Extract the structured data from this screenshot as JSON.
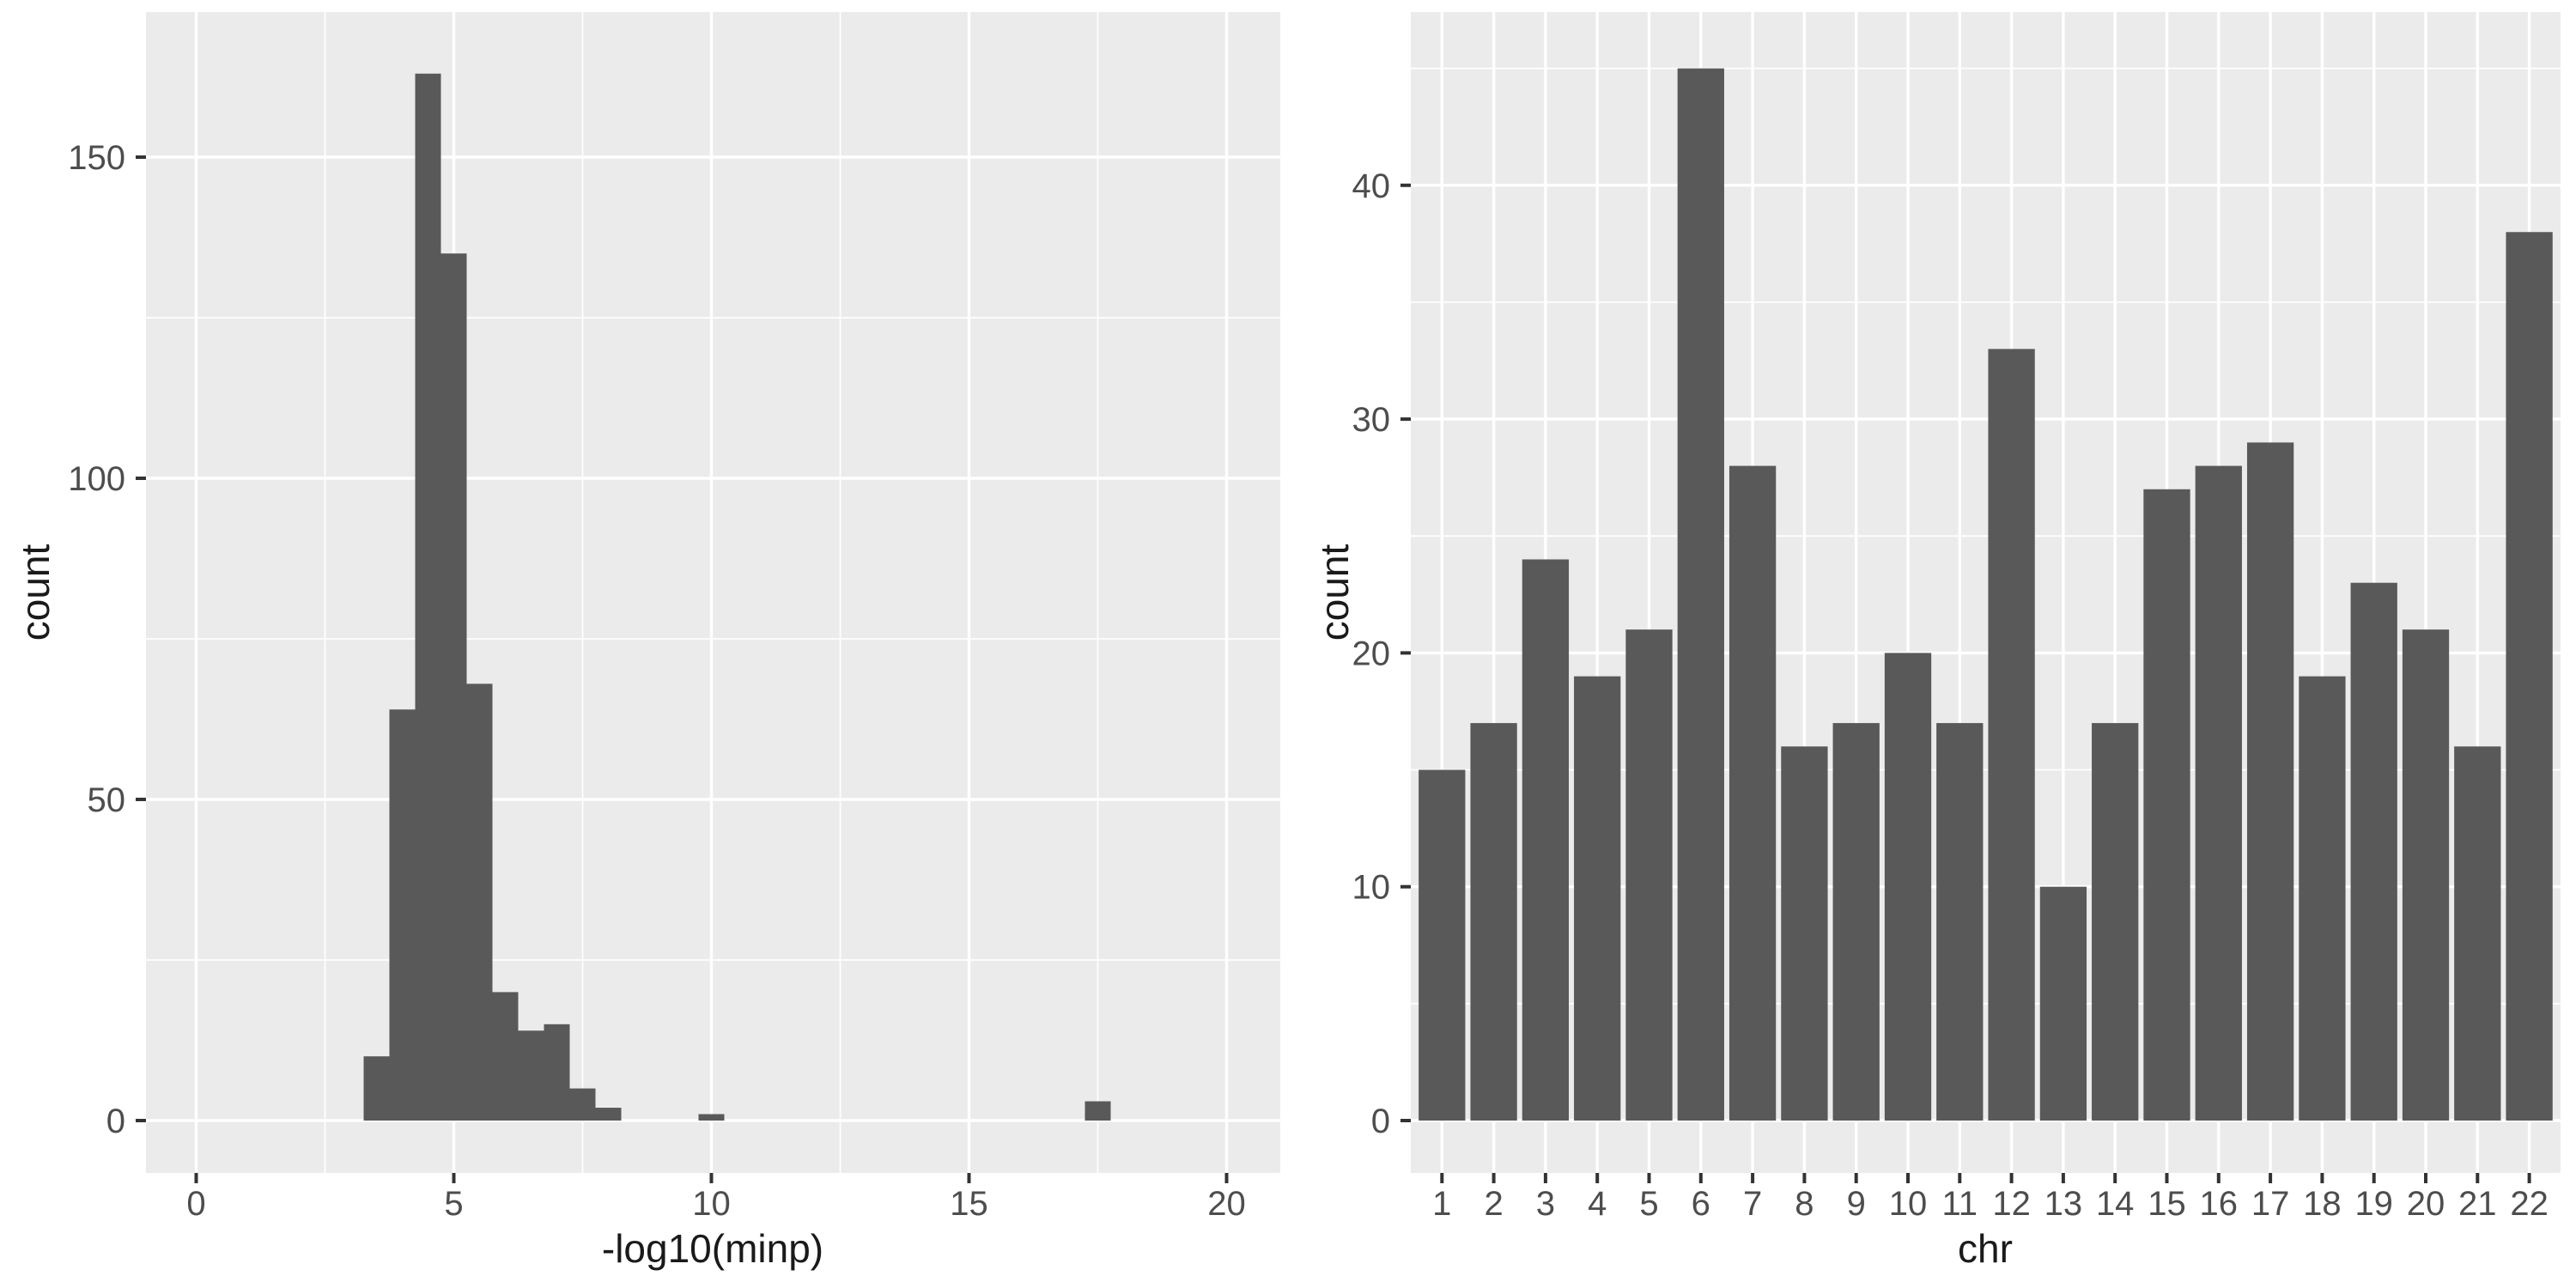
{
  "chart_data": [
    {
      "type": "bar",
      "subtype": "histogram",
      "title": "",
      "xlabel": "-log10(minp)",
      "ylabel": "count",
      "bin_width": 0.5,
      "bin_centers": [
        3.5,
        4.0,
        4.5,
        5.0,
        5.5,
        6.0,
        6.5,
        7.0,
        7.5,
        8.0,
        10.0,
        17.5
      ],
      "counts": [
        10,
        64,
        163,
        135,
        68,
        20,
        14,
        15,
        5,
        2,
        1,
        3
      ],
      "x_major_ticks": [
        0,
        5,
        10,
        15,
        20
      ],
      "x_tick_labels": [
        "0",
        "5",
        "10",
        "15",
        "20"
      ],
      "x_minor_gridlines": [
        2.5,
        7.5,
        12.5,
        17.5
      ],
      "y_major_ticks": [
        0,
        50,
        100,
        150
      ],
      "y_tick_labels": [
        "0",
        "50",
        "100",
        "150"
      ],
      "y_minor_gridlines": [
        25,
        75,
        125
      ],
      "xlim": [
        -0.98,
        21.0
      ],
      "ylim": [
        -8.2,
        172.6
      ],
      "grid": true,
      "legend": false
    },
    {
      "type": "bar",
      "title": "",
      "xlabel": "chr",
      "ylabel": "count",
      "categories": [
        "1",
        "2",
        "3",
        "4",
        "5",
        "6",
        "7",
        "8",
        "9",
        "10",
        "11",
        "12",
        "13",
        "14",
        "15",
        "16",
        "17",
        "18",
        "19",
        "20",
        "21",
        "22"
      ],
      "values": [
        15,
        17,
        24,
        19,
        21,
        45,
        28,
        16,
        17,
        20,
        17,
        33,
        10,
        17,
        27,
        28,
        29,
        19,
        23,
        21,
        16,
        38
      ],
      "y_major_ticks": [
        0,
        10,
        20,
        30,
        40
      ],
      "y_tick_labels": [
        "0",
        "10",
        "20",
        "30",
        "40"
      ],
      "y_minor_gridlines": [
        5,
        15,
        25,
        35,
        45
      ],
      "ylim": [
        -2.3,
        47.4
      ],
      "grid": true,
      "legend": false
    }
  ],
  "style": {
    "background": "#FFFFFF",
    "panel_bg": "#EBEBEB",
    "bar_fill": "#595959",
    "grid_color": "#FFFFFF",
    "tick_label_color": "#4D4D4D",
    "axis_title_color": "#1A1A1A",
    "tick_mark_color": "#333333"
  }
}
